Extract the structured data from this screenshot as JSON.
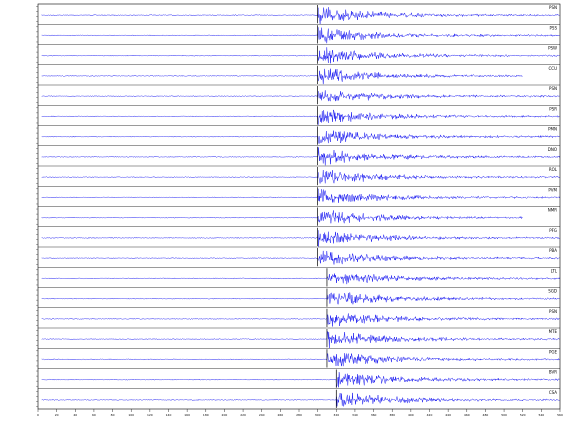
{
  "chart_data": {
    "type": "line",
    "title": "",
    "xlabel": "",
    "ylabel": "",
    "grid": false,
    "trace_color": "#0000ee",
    "pick_color": "#000000",
    "axis_color": "#000000",
    "stations": [
      {
        "name": "PSN",
        "pick": 300,
        "end": 560,
        "noise_event": null
      },
      {
        "name": "PSS",
        "pick": 300,
        "end": 560,
        "noise_event": null
      },
      {
        "name": "PSW",
        "pick": 300,
        "end": 560,
        "noise_event": null
      },
      {
        "name": "CCU",
        "pick": 300,
        "end": 520,
        "noise_event": null
      },
      {
        "name": "PSN",
        "pick": 300,
        "end": 560,
        "noise_event": null
      },
      {
        "name": "PSR",
        "pick": 300,
        "end": 560,
        "noise_event": null
      },
      {
        "name": "PMN",
        "pick": 300,
        "end": 560,
        "noise_event": null
      },
      {
        "name": "DNO",
        "pick": 300,
        "end": 560,
        "noise_event": null
      },
      {
        "name": "ROL",
        "pick": 300,
        "end": 560,
        "noise_event": null
      },
      {
        "name": "PVM",
        "pick": 300,
        "end": 560,
        "noise_event": null
      },
      {
        "name": "NMR",
        "pick": 300,
        "end": 520,
        "noise_event": null
      },
      {
        "name": "PFG",
        "pick": 300,
        "end": 560,
        "noise_event": null
      },
      {
        "name": "PBA",
        "pick": 300,
        "end": 560,
        "noise_event": null
      },
      {
        "name": "LTL",
        "pick": 310,
        "end": 560,
        "noise_event": null
      },
      {
        "name": "SGD",
        "pick": 310,
        "end": 560,
        "noise_event": null
      },
      {
        "name": "PSN",
        "pick": 310,
        "end": 560,
        "noise_event": null
      },
      {
        "name": "MTE",
        "pick": 310,
        "end": 560,
        "noise_event": null
      },
      {
        "name": "PGE",
        "pick": 310,
        "end": 560,
        "noise_event": null
      },
      {
        "name": "BVR",
        "pick": 320,
        "end": 560,
        "noise_event": null
      },
      {
        "name": "CSA",
        "pick": 320,
        "end": 560,
        "noise_event": null
      }
    ],
    "ticks": [
      0,
      20,
      40,
      60,
      80,
      100,
      120,
      140,
      160,
      180,
      200,
      220,
      240,
      260,
      280,
      300,
      320,
      340,
      360,
      380,
      400,
      420,
      440,
      460,
      480,
      500,
      520,
      540,
      560
    ]
  }
}
